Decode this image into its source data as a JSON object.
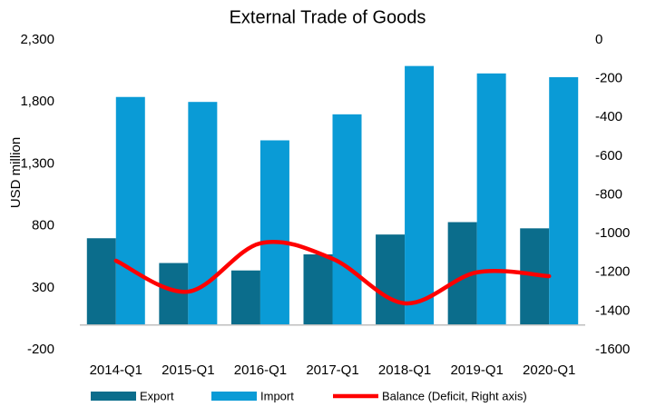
{
  "chart_data": {
    "type": "bar_line",
    "title": "External Trade of Goods",
    "y_label": "USD million",
    "categories": [
      "2014-Q1",
      "2015-Q1",
      "2016-Q1",
      "2017-Q1",
      "2018-Q1",
      "2019-Q1",
      "2020-Q1"
    ],
    "series": [
      {
        "name": "Export",
        "color": "#0b6d8c",
        "values": [
          700,
          500,
          440,
          570,
          730,
          830,
          780
        ]
      },
      {
        "name": "Import",
        "color": "#0a9bd6",
        "values": [
          1840,
          1800,
          1490,
          1700,
          2090,
          2030,
          2000
        ]
      },
      {
        "name": "Balance (Deficit, Right axis)",
        "color": "#ff0000",
        "axis": "y2",
        "values": [
          -1140,
          -1300,
          -1050,
          -1130,
          -1360,
          -1200,
          -1220
        ]
      }
    ],
    "ylim": [
      -200,
      2300
    ],
    "yticks": [
      -200,
      300,
      800,
      {
        "value": 1300,
        "label": "1,300"
      },
      {
        "value": 1800,
        "label": "1,800"
      },
      {
        "value": 2300,
        "label": "2,300"
      }
    ],
    "y2lim": [
      -1600,
      0
    ],
    "y2ticks": [
      -1600,
      -1400,
      -1200,
      -1000,
      -800,
      -600,
      -400,
      -200,
      0
    ],
    "legend": "bottom"
  }
}
